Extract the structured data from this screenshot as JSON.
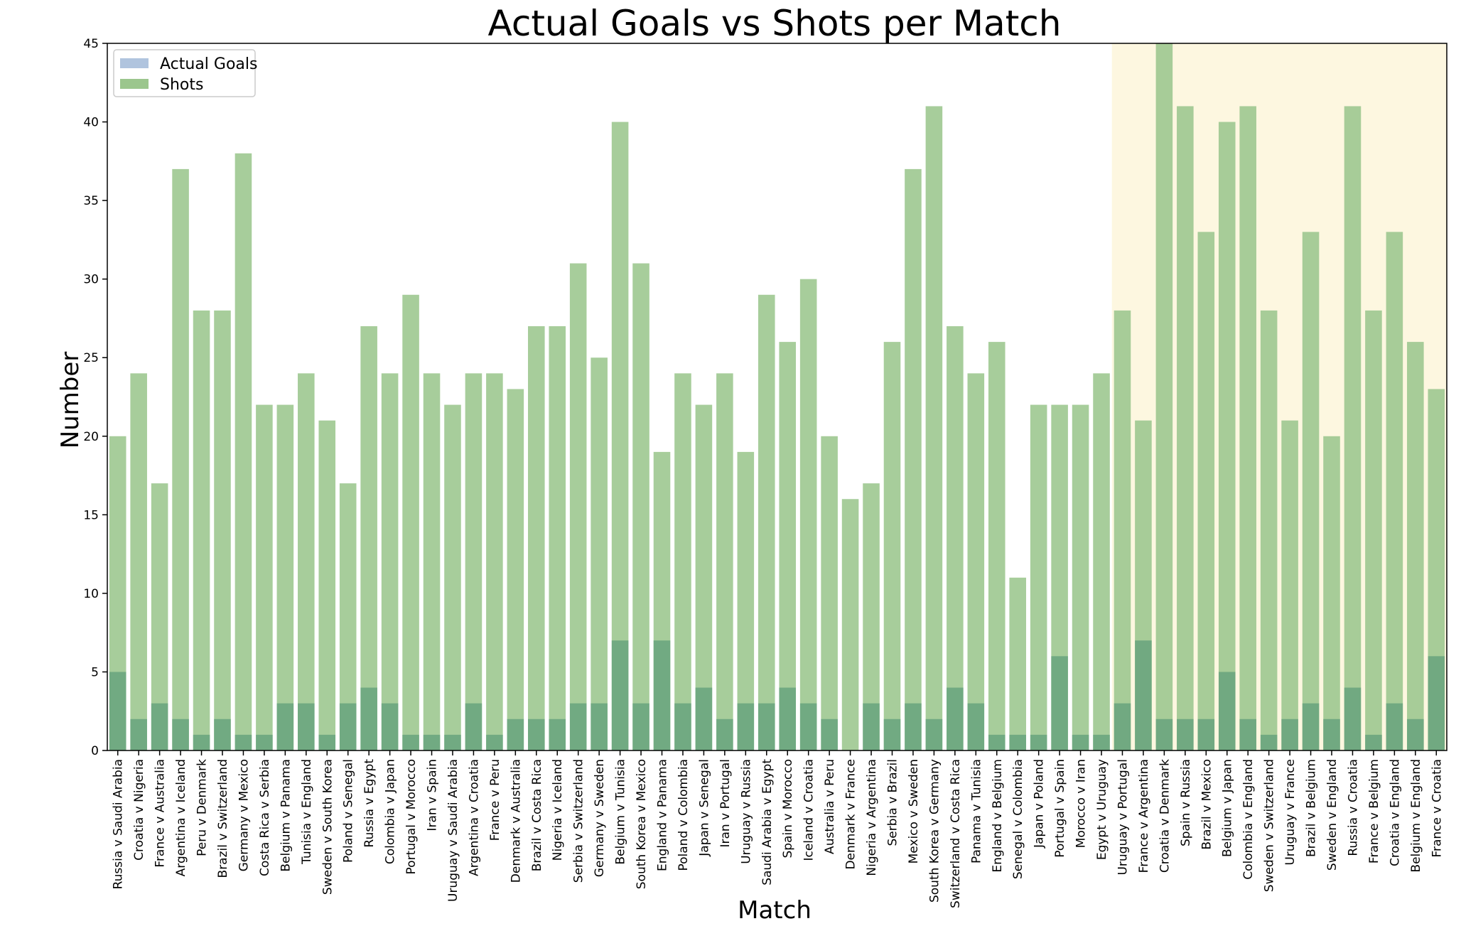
{
  "chart_data": {
    "type": "bar",
    "title": "Actual Goals vs Shots per Match",
    "xlabel": "Match",
    "ylabel": "Number",
    "ylim": [
      0,
      45
    ],
    "yticks": [
      0,
      5,
      10,
      15,
      20,
      25,
      30,
      35,
      40,
      45
    ],
    "grid": false,
    "legend_position": "top-left",
    "highlight_region": {
      "from_category": "Uruguay v Portugal",
      "to_category": "France v Croatia",
      "color": "#fdf7e0"
    },
    "categories": [
      "Russia v Saudi Arabia",
      "Croatia v Nigeria",
      "France v Australia",
      "Argentina v Iceland",
      "Peru v Denmark",
      "Brazil v Switzerland",
      "Germany v Mexico",
      "Costa Rica v Serbia",
      "Belgium v Panama",
      "Tunisia v England",
      "Sweden v South Korea",
      "Poland v Senegal",
      "Russia v Egypt",
      "Colombia v Japan",
      "Portugal v Morocco",
      "Iran v Spain",
      "Uruguay v Saudi Arabia",
      "Argentina v Croatia",
      "France v Peru",
      "Denmark v Australia",
      "Brazil v Costa Rica",
      "Nigeria v Iceland",
      "Serbia v Switzerland",
      "Germany v Sweden",
      "Belgium v Tunisia",
      "South Korea v Mexico",
      "England v Panama",
      "Poland v Colombia",
      "Japan v Senegal",
      "Iran v Portugal",
      "Uruguay v Russia",
      "Saudi Arabia v Egypt",
      "Spain v Morocco",
      "Iceland v Croatia",
      "Australia v Peru",
      "Denmark v France",
      "Nigeria v Argentina",
      "Serbia v Brazil",
      "Mexico v Sweden",
      "South Korea v Germany",
      "Switzerland v Costa Rica",
      "Panama v Tunisia",
      "England v Belgium",
      "Senegal v Colombia",
      "Japan v Poland",
      "Portugal v Spain",
      "Morocco v Iran",
      "Egypt v Uruguay",
      "Uruguay v Portugal",
      "France v Argentina",
      "Croatia v Denmark",
      "Spain v Russia",
      "Brazil v Mexico",
      "Belgium v Japan",
      "Colombia v England",
      "Sweden v Switzerland",
      "Uruguay v France",
      "Brazil v Belgium",
      "Sweden v England",
      "Russia v Croatia",
      "France v Belgium",
      "Croatia v England",
      "Belgium v England",
      "France v Croatia"
    ],
    "series": [
      {
        "name": "Actual Goals",
        "color": "#b0c4de",
        "values": [
          5,
          2,
          3,
          2,
          1,
          2,
          1,
          1,
          3,
          3,
          1,
          3,
          4,
          3,
          1,
          1,
          1,
          3,
          1,
          2,
          2,
          2,
          3,
          3,
          7,
          3,
          7,
          3,
          4,
          2,
          3,
          3,
          4,
          3,
          2,
          0,
          3,
          2,
          3,
          2,
          4,
          3,
          1,
          1,
          1,
          6,
          1,
          1,
          3,
          7,
          2,
          2,
          2,
          5,
          2,
          1,
          2,
          3,
          2,
          4,
          1,
          3,
          2,
          6
        ]
      },
      {
        "name": "Shots",
        "color": "#9bc68d",
        "values": [
          20,
          24,
          17,
          37,
          28,
          28,
          38,
          22,
          22,
          24,
          21,
          17,
          27,
          24,
          29,
          24,
          22,
          24,
          24,
          23,
          27,
          27,
          31,
          25,
          40,
          31,
          19,
          24,
          22,
          24,
          19,
          29,
          26,
          30,
          20,
          16,
          17,
          26,
          37,
          41,
          27,
          24,
          26,
          11,
          22,
          22,
          22,
          24,
          28,
          21,
          45,
          41,
          33,
          40,
          41,
          28,
          21,
          33,
          20,
          41,
          28,
          33,
          26,
          23
        ]
      }
    ]
  }
}
